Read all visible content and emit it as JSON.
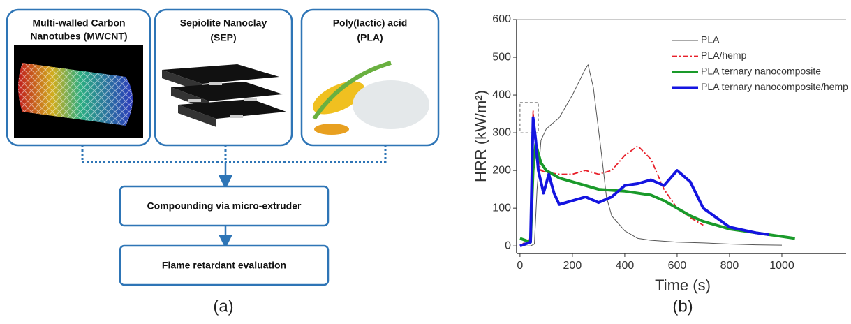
{
  "diagram": {
    "materials": [
      {
        "lines": [
          "Multi-walled Carbon",
          "Nanotubes (MWCNT)"
        ]
      },
      {
        "lines": [
          "Sepiolite  Nanoclay",
          "(SEP)"
        ]
      },
      {
        "lines": [
          "Poly(lactic) acid",
          "(PLA)"
        ]
      }
    ],
    "steps": [
      "Compounding via micro-extruder",
      "Flame retardant evaluation"
    ],
    "panels": [
      "(a)",
      "(b)"
    ]
  },
  "chart_data": {
    "type": "line",
    "x_label": "Time (s)",
    "y_label": "HRR (kW/m²)",
    "xlim": [
      -13,
      1200
    ],
    "ylim": [
      -20,
      600
    ],
    "xticks": [
      0,
      200,
      400,
      600,
      800,
      1000
    ],
    "yticks": [
      0,
      100,
      200,
      300,
      400,
      500,
      600
    ],
    "legend": "upper right",
    "series": [
      {
        "name": "PLA",
        "color": "#555555",
        "x": [
          0,
          40,
          55,
          65,
          80,
          100,
          150,
          200,
          250,
          260,
          280,
          310,
          330,
          350,
          400,
          450,
          500,
          600,
          700,
          800,
          900,
          1000
        ],
        "values": [
          0,
          0,
          5,
          150,
          280,
          310,
          340,
          400,
          470,
          480,
          420,
          250,
          130,
          80,
          40,
          20,
          15,
          10,
          8,
          5,
          3,
          2
        ]
      },
      {
        "name": "PLA/hemp",
        "color": "#e8202a",
        "dash": "dashdot",
        "x": [
          0,
          40,
          50,
          60,
          80,
          100,
          150,
          200,
          250,
          300,
          350,
          400,
          450,
          500,
          550,
          600,
          650,
          700
        ],
        "values": [
          0,
          20,
          360,
          250,
          200,
          195,
          190,
          190,
          200,
          190,
          200,
          240,
          265,
          230,
          150,
          100,
          75,
          55
        ]
      },
      {
        "name": "PLA ternary nanocomposite",
        "color": "#1a9a2a",
        "x": [
          0,
          40,
          50,
          60,
          80,
          100,
          150,
          200,
          300,
          400,
          500,
          550,
          600,
          650,
          700,
          800,
          900,
          1000,
          1050
        ],
        "values": [
          20,
          10,
          200,
          270,
          220,
          200,
          180,
          170,
          150,
          145,
          135,
          120,
          100,
          80,
          65,
          45,
          35,
          25,
          20
        ]
      },
      {
        "name": "PLA ternary nanocomposite/hemp",
        "color": "#1414e0",
        "x": [
          0,
          40,
          50,
          60,
          70,
          90,
          110,
          130,
          150,
          200,
          250,
          300,
          350,
          400,
          450,
          500,
          550,
          600,
          650,
          700,
          800,
          900,
          950
        ],
        "values": [
          0,
          10,
          340,
          280,
          200,
          140,
          190,
          140,
          110,
          120,
          130,
          115,
          130,
          160,
          165,
          175,
          160,
          200,
          170,
          100,
          50,
          35,
          30
        ]
      }
    ]
  }
}
